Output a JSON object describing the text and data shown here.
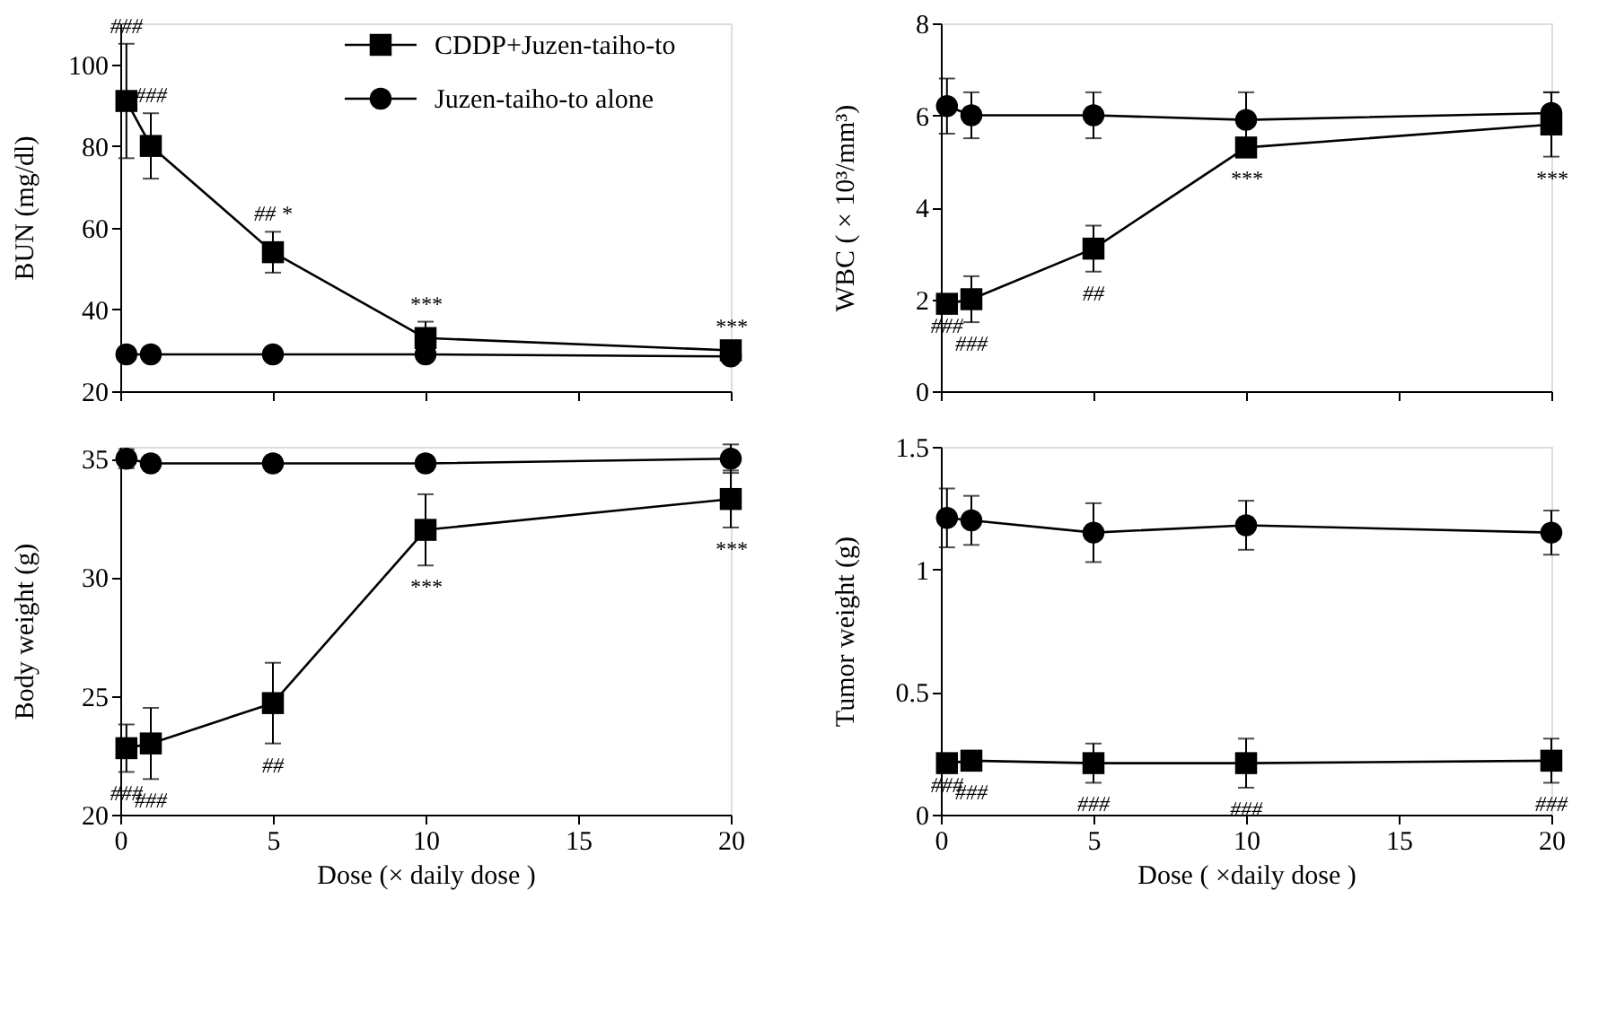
{
  "chart_data": [
    {
      "type": "line",
      "ylabel": "BUN (mg/dl)",
      "x": [
        0.2,
        1,
        5,
        10,
        20
      ],
      "xlim": [
        0,
        20
      ],
      "xticks": [
        0,
        5,
        10,
        15,
        20
      ],
      "ylim": [
        20,
        110
      ],
      "yticks": [
        20,
        40,
        60,
        80,
        100
      ],
      "tick_labels": "y",
      "legend": "top right",
      "series": [
        {
          "name": "CDDP+Juzen-taiho-to",
          "color": "#000000",
          "marker": "square",
          "values": [
            91,
            80,
            54,
            33,
            30
          ],
          "errors": [
            14,
            8,
            5,
            4,
            1.5
          ],
          "value_labels": [
            "###",
            "###",
            "##  *",
            "***",
            "***"
          ]
        },
        {
          "name": "Juzen-taiho-to alone",
          "color": "#000000",
          "marker": "circle",
          "values": [
            29,
            29,
            29,
            29,
            28.5
          ]
        }
      ]
    },
    {
      "type": "line",
      "ylabel": "WBC ( × 10³/mm³)",
      "x": [
        0.2,
        1,
        5,
        10,
        20
      ],
      "xlim": [
        0,
        20
      ],
      "xticks": [
        0,
        5,
        10,
        15,
        20
      ],
      "ylim": [
        0,
        8
      ],
      "yticks": [
        0,
        2,
        4,
        6,
        8
      ],
      "tick_labels": "y",
      "series": [
        {
          "color": "#000000",
          "marker": "square",
          "values": [
            1.9,
            2.0,
            3.1,
            5.3,
            5.8
          ],
          "errors": [
            null,
            0.5,
            0.5,
            0.2,
            0.7
          ],
          "value_labels": [
            "###",
            "###",
            "##",
            "***",
            "***"
          ]
        },
        {
          "color": "#000000",
          "marker": "circle",
          "values": [
            6.2,
            6.0,
            6.0,
            5.9,
            6.05
          ],
          "errors": [
            0.6,
            0.5,
            0.5,
            0.6,
            0.45
          ]
        }
      ]
    },
    {
      "type": "line",
      "ylabel": "Body weight (g)",
      "xlabel": "Dose (× daily dose )",
      "x": [
        0.2,
        1,
        5,
        10,
        20
      ],
      "xlim": [
        0,
        20
      ],
      "xticks": [
        0,
        5,
        10,
        15,
        20
      ],
      "ylim": [
        20,
        35.5
      ],
      "yticks": [
        20,
        25,
        30,
        35
      ],
      "series": [
        {
          "color": "#000000",
          "marker": "square",
          "values": [
            22.8,
            23.0,
            24.7,
            32.0,
            33.3
          ],
          "errors": [
            1.0,
            1.5,
            1.7,
            1.5,
            1.2
          ],
          "value_labels": [
            "###",
            "###",
            "##",
            "***",
            "***"
          ]
        },
        {
          "color": "#000000",
          "marker": "circle",
          "values": [
            35.0,
            34.8,
            34.8,
            34.8,
            35.0
          ],
          "errors": [
            0.4,
            null,
            null,
            null,
            0.6
          ]
        }
      ]
    },
    {
      "type": "line",
      "ylabel": "Tumor weight (g)",
      "xlabel": "Dose ( ×daily dose )",
      "x": [
        0.2,
        1,
        5,
        10,
        20
      ],
      "xlim": [
        0,
        20
      ],
      "xticks": [
        0,
        5,
        10,
        15,
        20
      ],
      "ylim": [
        0,
        1.5
      ],
      "yticks": [
        0,
        0.5,
        1,
        1.5
      ],
      "series": [
        {
          "color": "#000000",
          "marker": "square",
          "values": [
            0.21,
            0.22,
            0.21,
            0.21,
            0.22
          ],
          "errors": [
            null,
            0.04,
            0.08,
            0.1,
            0.09
          ],
          "value_labels": [
            "###",
            "###",
            "###",
            "###",
            "###"
          ]
        },
        {
          "color": "#000000",
          "marker": "circle",
          "values": [
            1.21,
            1.2,
            1.15,
            1.18,
            1.15
          ],
          "errors": [
            0.12,
            0.1,
            0.12,
            0.1,
            0.09
          ]
        }
      ]
    }
  ]
}
